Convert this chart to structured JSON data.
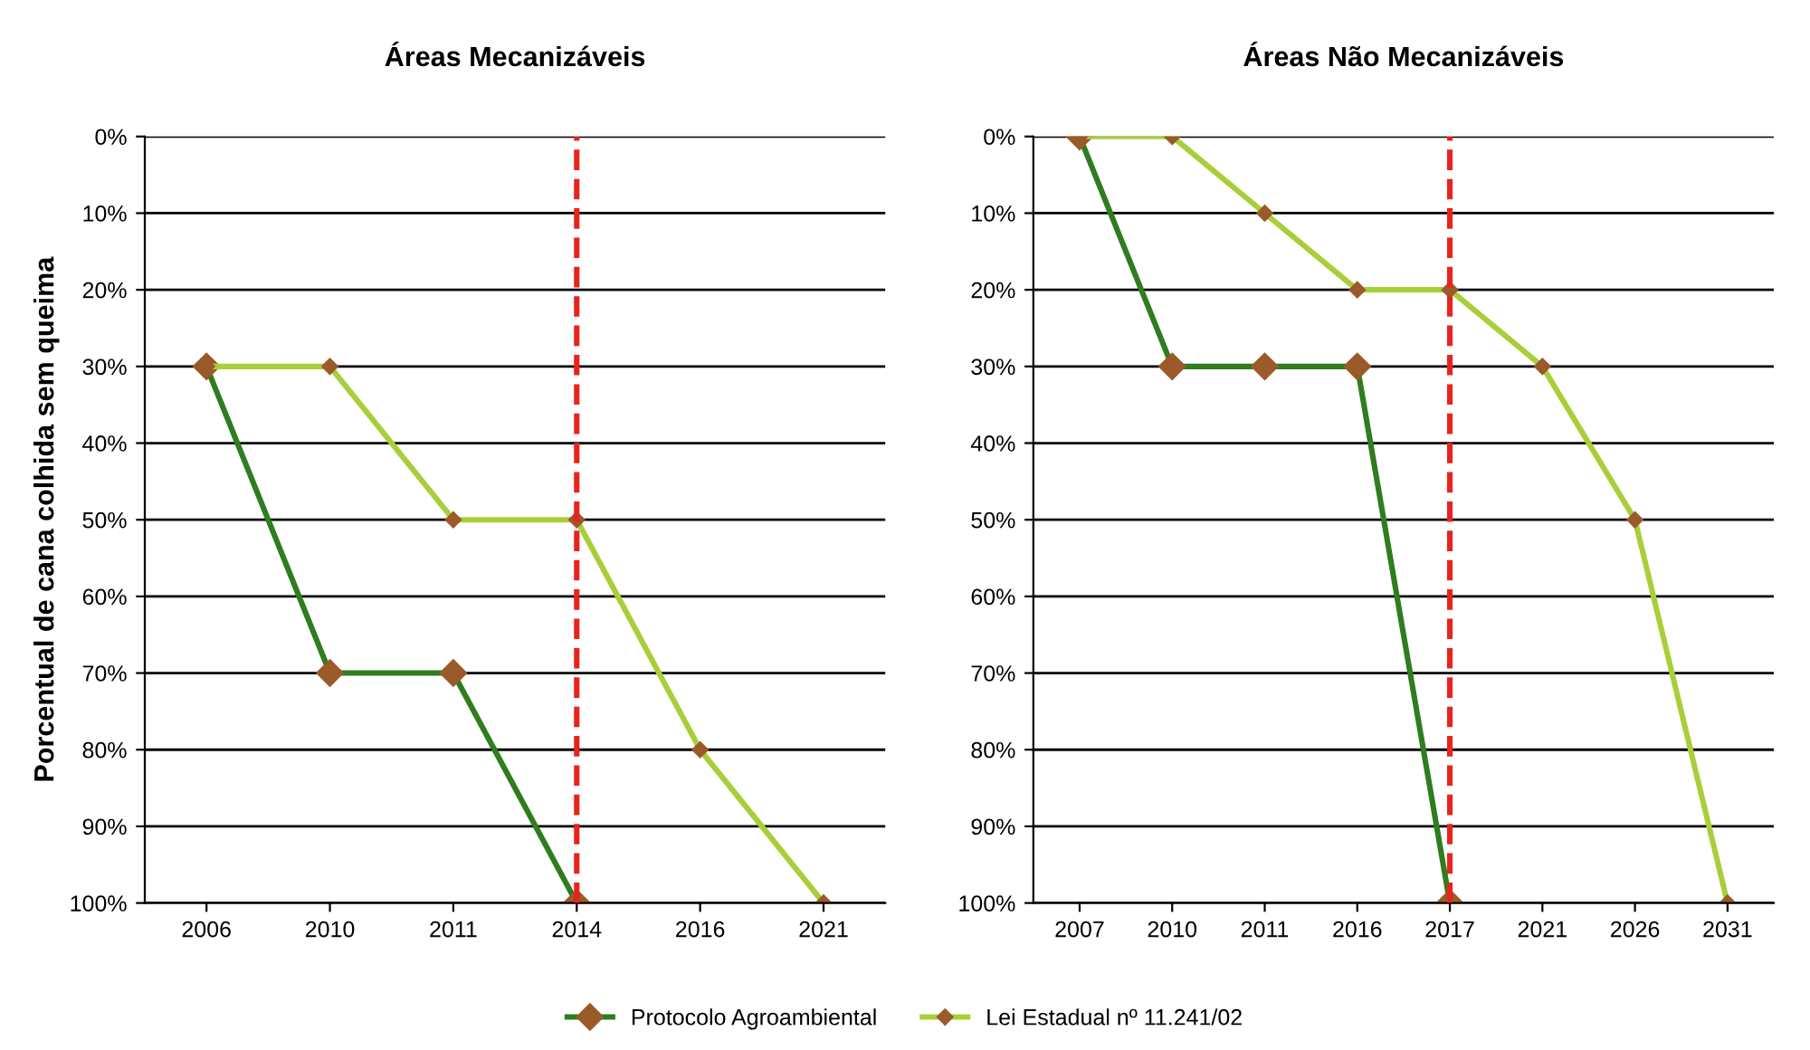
{
  "chart_data": [
    {
      "type": "line",
      "title": "Áreas Mecanizáveis",
      "ylabel": "Porcentual de cana colhida sem queima",
      "categories": [
        "2006",
        "2010",
        "2011",
        "2014",
        "2016",
        "2021"
      ],
      "series": [
        {
          "color": "#2e7d1e",
          "values": [
            30,
            70,
            70,
            100,
            null,
            null
          ]
        },
        {
          "color": "#a8cf3a",
          "values": [
            30,
            30,
            50,
            50,
            80,
            100
          ]
        }
      ],
      "ylim": [
        100,
        0
      ],
      "yticks": [
        {
          "value": 0,
          "label": "0%"
        },
        {
          "value": 10,
          "label": "10%"
        },
        {
          "value": 20,
          "label": "20%"
        },
        {
          "value": 30,
          "label": "30%"
        },
        {
          "value": 40,
          "label": "40%"
        },
        {
          "value": 50,
          "label": "50%"
        },
        {
          "value": 60,
          "label": "60%"
        },
        {
          "value": 70,
          "label": "70%"
        },
        {
          "value": 80,
          "label": "80%"
        },
        {
          "value": 90,
          "label": "90%"
        },
        {
          "value": 100,
          "label": "100%"
        }
      ],
      "grid": "y",
      "marker": "diamond",
      "line_style": "solid",
      "ref_lines": [
        {
          "axis": "x",
          "value": "2014",
          "color": "#e8231d",
          "line_style": "dashed"
        }
      ]
    },
    {
      "type": "line",
      "title": "Áreas Não Mecanizáveis",
      "categories": [
        "2007",
        "2010",
        "2011",
        "2016",
        "2017",
        "2021",
        "2026",
        "2031"
      ],
      "series": [
        {
          "name": "Protocolo Agroambiental",
          "color": "#2e7d1e",
          "values": [
            0,
            30,
            30,
            30,
            100,
            null,
            null,
            null
          ]
        },
        {
          "name": "Lei Estadual nº 11.241/02",
          "color": "#a8cf3a",
          "values": [
            0,
            0,
            10,
            20,
            20,
            30,
            50,
            100
          ]
        }
      ],
      "ylim": [
        100,
        0
      ],
      "yticks": [
        {
          "value": 0,
          "label": "0%"
        },
        {
          "value": 10,
          "label": "10%"
        },
        {
          "value": 20,
          "label": "20%"
        },
        {
          "value": 30,
          "label": "30%"
        },
        {
          "value": 40,
          "label": "40%"
        },
        {
          "value": 50,
          "label": "50%"
        },
        {
          "value": 60,
          "label": "60%"
        },
        {
          "value": 70,
          "label": "70%"
        },
        {
          "value": 80,
          "label": "80%"
        },
        {
          "value": 90,
          "label": "90%"
        },
        {
          "value": 100,
          "label": "100%"
        }
      ],
      "grid": "y",
      "marker": "diamond",
      "line_style": "solid",
      "legend": "bottom",
      "ref_lines": [
        {
          "axis": "x",
          "value": "2017",
          "color": "#e8231d",
          "line_style": "dashed"
        }
      ]
    }
  ]
}
